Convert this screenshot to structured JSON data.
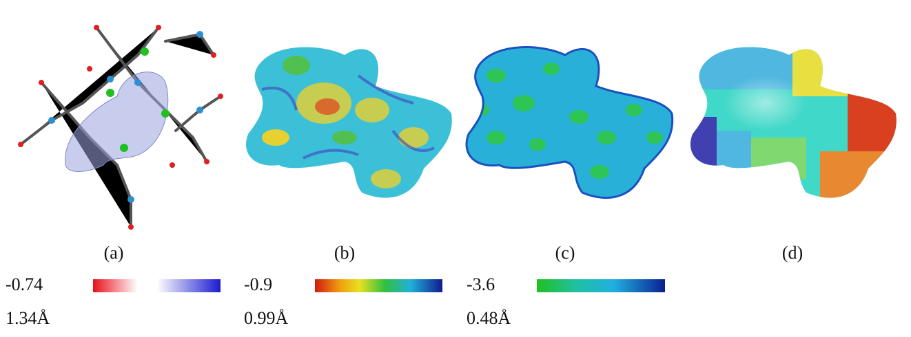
{
  "panels": [
    {
      "label": "(a)"
    },
    {
      "label": "(b)"
    },
    {
      "label": "(c)"
    },
    {
      "label": "(d)"
    }
  ],
  "scales": [
    {
      "min": "-0.74",
      "distance": "1.34Å"
    },
    {
      "min": "-0.9",
      "distance": "0.99Å"
    },
    {
      "min": "-3.6",
      "distance": "0.48Å"
    }
  ]
}
